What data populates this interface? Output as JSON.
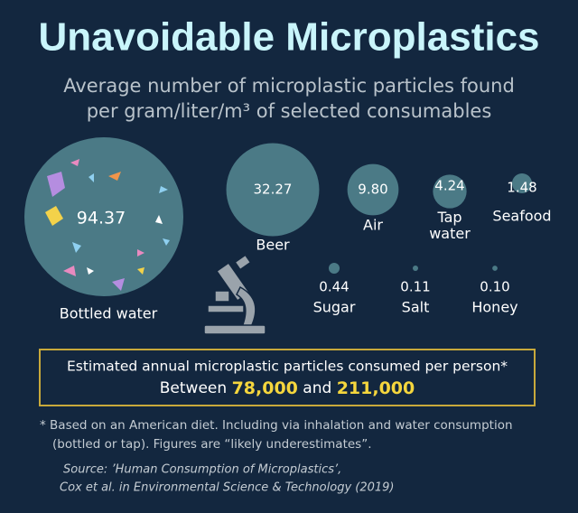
{
  "chart_data": {
    "type": "bubble",
    "title": "Unavoidable Microplastics",
    "subtitle": [
      "Average number of microplastic particles found",
      "per gram/liter/m³ of selected consumables"
    ],
    "categories": [
      "Bottled water",
      "Beer",
      "Air",
      "Tap water",
      "Seafood",
      "Sugar",
      "Salt",
      "Honey"
    ],
    "values": [
      94.37,
      32.27,
      9.8,
      4.24,
      1.48,
      0.44,
      0.11,
      0.1
    ],
    "value_labels": [
      "94.37",
      "32.27",
      "9.80",
      "4.24",
      "1.48",
      "0.44",
      "0.11",
      "0.10"
    ],
    "color": "#4b7a86",
    "callout": {
      "heading": "Estimated annual microplastic particles consumed per person*",
      "prefix": "Between",
      "low": "78,000",
      "connector": "and",
      "high": "211,000"
    },
    "footnote": [
      "* Based on an American diet. Including via inhalation and water consumption",
      "(bottled or tap). Figures are “likely underestimates”."
    ],
    "source": [
      "Source: ’Human Consumption of Microplastics’,",
      "Cox et al. in Environmental Science & Technology (2019)"
    ]
  }
}
